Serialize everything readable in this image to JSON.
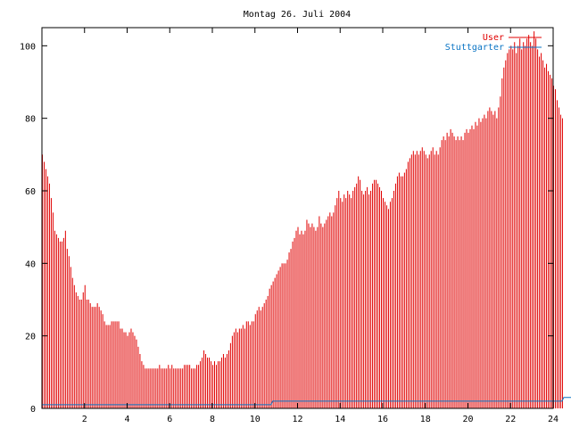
{
  "chart_data": {
    "type": "bar",
    "title": "Montag 26. Juli 2004",
    "xlabel": "",
    "ylabel": "",
    "xlim": [
      0,
      24
    ],
    "ylim": [
      0,
      105
    ],
    "x_ticks": [
      2,
      4,
      6,
      8,
      10,
      12,
      14,
      16,
      18,
      20,
      22,
      24
    ],
    "y_ticks": [
      0,
      20,
      40,
      60,
      80,
      100
    ],
    "grid": false,
    "legend_position": "top-right",
    "colors": {
      "User": "#e00000",
      "Stuttgarter": "#0a74c4"
    },
    "bin_minutes": 5,
    "series": [
      {
        "name": "User",
        "style": "impulses",
        "values": [
          70,
          68,
          66,
          64,
          62,
          58,
          54,
          49,
          48,
          47,
          46,
          46,
          47,
          49,
          44,
          42,
          39,
          36,
          34,
          32,
          31,
          30,
          30,
          32,
          34,
          30,
          30,
          29,
          28,
          28,
          28,
          29,
          28,
          27,
          26,
          24,
          23,
          23,
          23,
          24,
          24,
          24,
          24,
          24,
          22,
          22,
          21,
          21,
          20,
          21,
          22,
          21,
          20,
          19,
          17,
          15,
          13,
          12,
          11,
          11,
          11,
          11,
          11,
          11,
          11,
          11,
          12,
          11,
          11,
          11,
          11,
          12,
          11,
          12,
          11,
          11,
          11,
          11,
          11,
          11,
          12,
          12,
          12,
          12,
          11,
          11,
          11,
          12,
          12,
          13,
          14,
          16,
          15,
          14,
          14,
          13,
          12,
          13,
          12,
          13,
          13,
          14,
          15,
          14,
          15,
          16,
          18,
          20,
          21,
          22,
          21,
          22,
          22,
          23,
          22,
          24,
          24,
          23,
          24,
          24,
          26,
          27,
          28,
          27,
          28,
          29,
          30,
          31,
          33,
          34,
          35,
          36,
          37,
          38,
          39,
          40,
          40,
          40,
          41,
          43,
          44,
          46,
          47,
          49,
          50,
          48,
          49,
          48,
          49,
          52,
          51,
          50,
          51,
          50,
          49,
          50,
          53,
          51,
          50,
          51,
          52,
          53,
          54,
          53,
          54,
          56,
          58,
          60,
          58,
          57,
          59,
          58,
          60,
          59,
          58,
          60,
          61,
          62,
          64,
          63,
          60,
          59,
          60,
          61,
          59,
          60,
          62,
          63,
          63,
          62,
          61,
          60,
          58,
          57,
          56,
          55,
          57,
          58,
          60,
          62,
          64,
          65,
          64,
          64,
          65,
          66,
          68,
          69,
          70,
          71,
          70,
          71,
          70,
          71,
          72,
          71,
          70,
          69,
          70,
          71,
          72,
          70,
          71,
          70,
          72,
          74,
          75,
          74,
          76,
          75,
          77,
          76,
          75,
          74,
          75,
          74,
          75,
          74,
          76,
          77,
          76,
          77,
          78,
          77,
          79,
          78,
          80,
          79,
          80,
          81,
          80,
          82,
          83,
          82,
          81,
          82,
          80,
          83,
          86,
          91,
          94,
          96,
          98,
          99,
          100,
          99,
          101,
          98,
          100,
          102,
          99,
          101,
          100,
          102,
          103,
          101,
          100,
          104,
          102,
          99,
          97,
          98,
          96,
          94,
          95,
          93,
          92,
          91,
          89,
          88,
          85,
          83,
          81,
          80
        ]
      },
      {
        "name": "Stuttgarter",
        "style": "lines",
        "values": [
          1,
          1,
          1,
          1,
          1,
          1,
          1,
          1,
          1,
          1,
          1,
          1,
          1,
          1,
          1,
          1,
          1,
          1,
          1,
          1,
          1,
          1,
          1,
          1,
          1,
          1,
          1,
          1,
          1,
          1,
          1,
          1,
          1,
          1,
          1,
          1,
          1,
          1,
          1,
          1,
          1,
          1,
          1,
          1,
          1,
          1,
          1,
          1,
          1,
          1,
          1,
          1,
          1,
          1,
          1,
          1,
          1,
          1,
          1,
          1,
          1,
          1,
          1,
          1,
          1,
          1,
          1,
          1,
          1,
          1,
          1,
          1,
          1,
          1,
          1,
          1,
          1,
          1,
          1,
          1,
          1,
          1,
          1,
          1,
          1,
          1,
          1,
          1,
          1,
          1,
          1,
          1,
          1,
          1,
          1,
          1,
          1,
          1,
          1,
          1,
          1,
          1,
          1,
          1,
          1,
          1,
          1,
          1,
          1,
          1,
          1,
          1,
          1,
          1,
          1,
          1,
          1,
          1,
          1,
          1,
          1,
          1,
          1,
          1,
          1,
          1,
          1,
          1,
          1,
          1,
          2,
          2,
          2,
          2,
          2,
          2,
          2,
          2,
          2,
          2,
          2,
          2,
          2,
          2,
          2,
          2,
          2,
          2,
          2,
          2,
          2,
          2,
          2,
          2,
          2,
          2,
          2,
          2,
          2,
          2,
          2,
          2,
          2,
          2,
          2,
          2,
          2,
          2,
          2,
          2,
          2,
          2,
          2,
          2,
          2,
          2,
          2,
          2,
          2,
          2,
          2,
          2,
          2,
          2,
          2,
          2,
          2,
          2,
          2,
          2,
          2,
          2,
          2,
          2,
          2,
          2,
          2,
          2,
          2,
          2,
          2,
          2,
          2,
          2,
          2,
          2,
          2,
          2,
          2,
          2,
          2,
          2,
          2,
          2,
          2,
          2,
          2,
          2,
          2,
          2,
          2,
          2,
          2,
          2,
          2,
          2,
          2,
          2,
          2,
          2,
          2,
          2,
          2,
          2,
          2,
          2,
          2,
          2,
          2,
          2,
          2,
          2,
          2,
          2,
          2,
          2,
          2,
          2,
          2,
          2,
          2,
          2,
          2,
          2,
          2,
          2,
          2,
          2,
          2,
          2,
          2,
          2,
          2,
          2,
          2,
          2,
          2,
          2,
          2,
          2,
          2,
          2,
          2,
          2,
          2,
          2,
          2,
          2,
          2,
          2,
          2,
          2,
          2,
          2,
          2,
          2,
          2,
          2,
          2,
          2,
          2,
          2,
          2,
          2,
          3,
          3,
          3,
          3,
          3,
          3,
          3,
          3,
          3,
          3,
          3,
          3,
          3,
          3,
          3
        ]
      }
    ]
  }
}
